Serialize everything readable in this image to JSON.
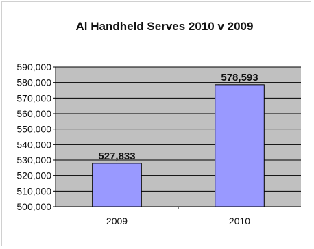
{
  "chart_data": {
    "type": "bar",
    "title": "Al Handheld Serves 2010 v 2009",
    "xlabel": "",
    "ylabel": "",
    "categories": [
      "2009",
      "2010"
    ],
    "values": [
      527833,
      578593
    ],
    "data_labels": [
      "527,833",
      "578,593"
    ],
    "ylim": [
      500000,
      590000
    ],
    "yticks": [
      500000,
      510000,
      520000,
      530000,
      540000,
      550000,
      560000,
      570000,
      580000,
      590000
    ],
    "ytick_labels": [
      "500,000",
      "510,000",
      "520,000",
      "530,000",
      "540,000",
      "550,000",
      "560,000",
      "570,000",
      "580,000",
      "590,000"
    ],
    "grid": true,
    "legend": "none",
    "colors": {
      "bar_fill": "#9999ff",
      "bar_stroke": "#000000",
      "plot_background": "#c0c0c0",
      "gridline": "#000000"
    }
  }
}
